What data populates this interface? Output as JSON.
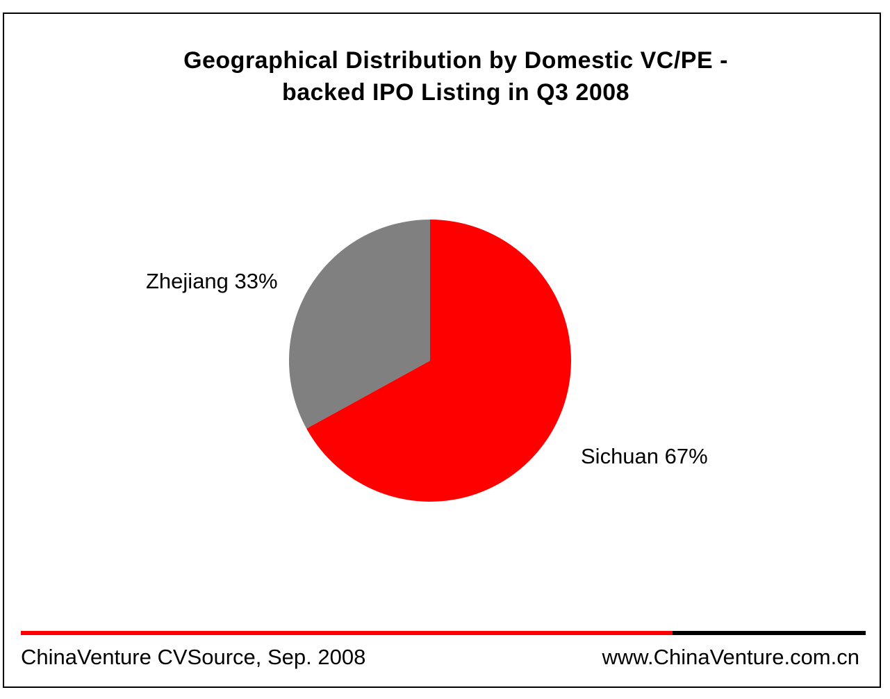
{
  "chart_data": {
    "type": "pie",
    "title_lines": [
      "Geographical Distribution by Domestic VC/PE -",
      "backed IPO Listing in Q3 2008"
    ],
    "slices": [
      {
        "label": "Sichuan",
        "value": 67,
        "display": "Sichuan 67%",
        "color": "#ff0000"
      },
      {
        "label": "Zhejiang",
        "value": 33,
        "display": "Zhejiang 33%",
        "color": "#808080"
      }
    ],
    "start_angle_deg": 0,
    "direction": "clockwise"
  },
  "footer": {
    "source": "ChinaVenture CVSource, Sep. 2008",
    "website": "www.ChinaVenture.com.cn"
  }
}
